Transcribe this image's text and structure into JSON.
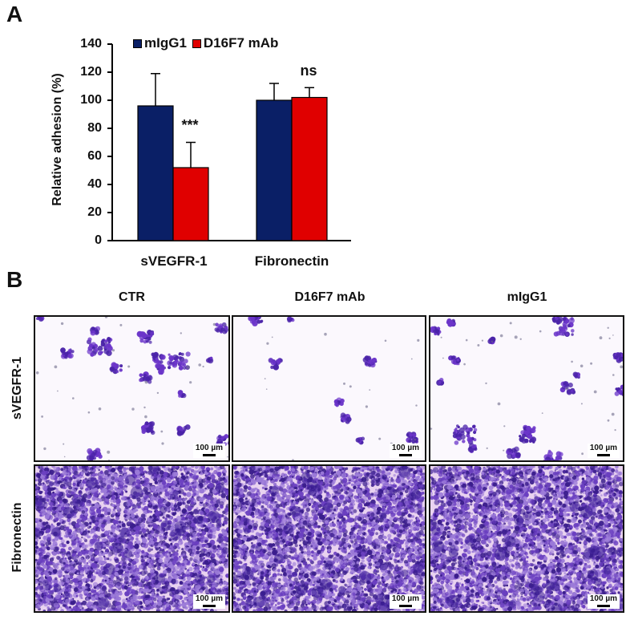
{
  "panel_a": {
    "letter": "A"
  },
  "panel_b": {
    "letter": "B"
  },
  "chart_data": {
    "type": "bar",
    "title": "",
    "xlabel": "",
    "ylabel": "Relative adhesion (%)",
    "ylim": [
      0,
      140
    ],
    "yticks": [
      0,
      20,
      40,
      60,
      80,
      100,
      120,
      140
    ],
    "grid": false,
    "legend_position": "top",
    "categories": [
      "sVEGFR-1",
      "Fibronectin"
    ],
    "series": [
      {
        "name": "mIgG1",
        "color": "#0a1f66",
        "values": [
          96,
          100
        ],
        "errors": [
          23,
          12
        ]
      },
      {
        "name": "D16F7 mAb",
        "color": "#e00000",
        "values": [
          52,
          102
        ],
        "errors": [
          18,
          7
        ]
      }
    ],
    "annotations": [
      {
        "category": "sVEGFR-1",
        "series": "D16F7 mAb",
        "text": "***"
      },
      {
        "category": "Fibronectin",
        "series": "D16F7 mAb",
        "text": "ns"
      }
    ]
  },
  "legend": {
    "items": [
      {
        "label": "mIgG1",
        "color": "#0a1f66"
      },
      {
        "label": "D16F7 mAb",
        "color": "#e00000"
      }
    ]
  },
  "micrographs": {
    "columns": [
      "CTR",
      "D16F7 mAb",
      "mIgG1"
    ],
    "rows": [
      "sVEGFR-1",
      "Fibronectin"
    ],
    "scale_bar": "100 µm"
  }
}
